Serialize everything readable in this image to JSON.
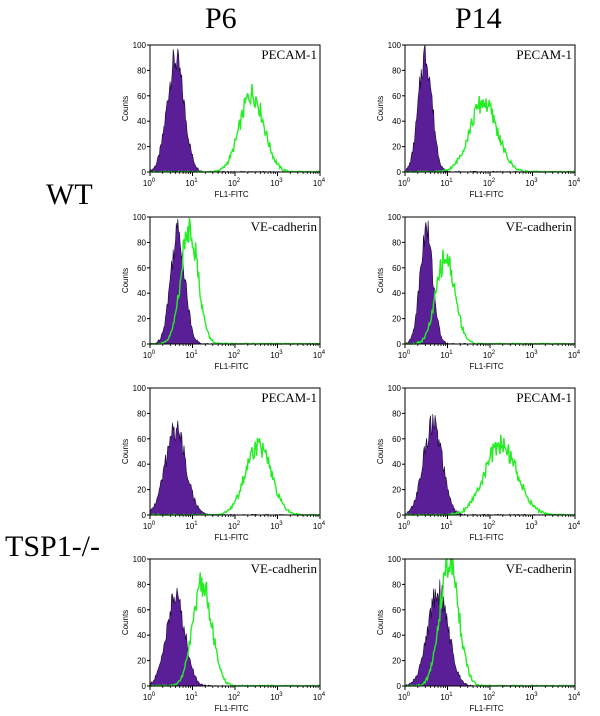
{
  "columns": [
    "P6",
    "P14"
  ],
  "rows": [
    "WT",
    "TSP1-/-"
  ],
  "colors": {
    "isotype_fill": "#5a1f96",
    "marker_line": "#22ee22",
    "axis": "#000000"
  },
  "chart_data": [
    {
      "type": "area",
      "column": "P6",
      "genotype": "WT",
      "marker": "PECAM-1",
      "xlabel": "FL1-FITC",
      "ylabel": "Counts",
      "xscale": "log",
      "xlim": [
        1,
        10000
      ],
      "ylim": [
        0,
        100
      ],
      "xticks": [
        "10",
        "10",
        "10",
        "10",
        "10"
      ],
      "xtick_exp": [
        "0",
        "1",
        "2",
        "3",
        "4"
      ],
      "yticks": [
        "0",
        "20",
        "40",
        "60",
        "80",
        "100"
      ],
      "series": [
        {
          "kind": "filled",
          "peak_x": 4.0,
          "peak_y": 88,
          "width": 0.2
        },
        {
          "kind": "line",
          "peak_x": 250,
          "peak_y": 62,
          "width": 0.28
        }
      ]
    },
    {
      "type": "area",
      "column": "P14",
      "genotype": "WT",
      "marker": "PECAM-1",
      "xlabel": "FL1-FITC",
      "ylabel": "Counts",
      "xscale": "log",
      "xlim": [
        1,
        10000
      ],
      "ylim": [
        0,
        100
      ],
      "xticks": [
        "10",
        "10",
        "10",
        "10",
        "10"
      ],
      "xtick_exp": [
        "0",
        "1",
        "2",
        "3",
        "4"
      ],
      "yticks": [
        "0",
        "20",
        "40",
        "60",
        "80",
        "100"
      ],
      "series": [
        {
          "kind": "filled",
          "peak_x": 3.0,
          "peak_y": 92,
          "width": 0.16
        },
        {
          "kind": "line",
          "peak_x": 70,
          "peak_y": 55,
          "width": 0.32
        }
      ]
    },
    {
      "type": "area",
      "column": "P6",
      "genotype": "WT",
      "marker": "VE-cadherin",
      "xlabel": "FL1-FITC",
      "ylabel": "Counts",
      "xscale": "log",
      "xlim": [
        1,
        10000
      ],
      "ylim": [
        0,
        100
      ],
      "xticks": [
        "10",
        "10",
        "10",
        "10",
        "10"
      ],
      "xtick_exp": [
        "0",
        "1",
        "2",
        "3",
        "4"
      ],
      "yticks": [
        "0",
        "20",
        "40",
        "60",
        "80",
        "100"
      ],
      "series": [
        {
          "kind": "filled",
          "peak_x": 4.5,
          "peak_y": 88,
          "width": 0.17
        },
        {
          "kind": "line",
          "peak_x": 8.5,
          "peak_y": 92,
          "width": 0.2
        }
      ]
    },
    {
      "type": "area",
      "column": "P14",
      "genotype": "WT",
      "marker": "VE-cadherin",
      "xlabel": "FL1-FITC",
      "ylabel": "Counts",
      "xscale": "log",
      "xlim": [
        1,
        10000
      ],
      "ylim": [
        0,
        100
      ],
      "xticks": [
        "10",
        "10",
        "10",
        "10",
        "10"
      ],
      "xtick_exp": [
        "0",
        "1",
        "2",
        "3",
        "4"
      ],
      "yticks": [
        "0",
        "20",
        "40",
        "60",
        "80",
        "100"
      ],
      "series": [
        {
          "kind": "filled",
          "peak_x": 3.2,
          "peak_y": 90,
          "width": 0.15
        },
        {
          "kind": "line",
          "peak_x": 9.0,
          "peak_y": 68,
          "width": 0.22
        }
      ]
    },
    {
      "type": "area",
      "column": "P6",
      "genotype": "TSP1-/-",
      "marker": "PECAM-1",
      "xlabel": "FL1-FITC",
      "ylabel": "Counts",
      "xscale": "log",
      "xlim": [
        1,
        10000
      ],
      "ylim": [
        0,
        100
      ],
      "xticks": [
        "10",
        "10",
        "10",
        "10",
        "10"
      ],
      "xtick_exp": [
        "0",
        "1",
        "2",
        "3",
        "4"
      ],
      "yticks": [
        "0",
        "20",
        "40",
        "60",
        "80",
        "100"
      ],
      "series": [
        {
          "kind": "filled",
          "peak_x": 4.0,
          "peak_y": 68,
          "width": 0.24
        },
        {
          "kind": "line",
          "peak_x": 350,
          "peak_y": 55,
          "width": 0.3
        }
      ]
    },
    {
      "type": "area",
      "column": "P14",
      "genotype": "TSP1-/-",
      "marker": "PECAM-1",
      "xlabel": "FL1-FITC",
      "ylabel": "Counts",
      "xscale": "log",
      "xlim": [
        1,
        10000
      ],
      "ylim": [
        0,
        100
      ],
      "xticks": [
        "10",
        "10",
        "10",
        "10",
        "10"
      ],
      "xtick_exp": [
        "0",
        "1",
        "2",
        "3",
        "4"
      ],
      "yticks": [
        "0",
        "20",
        "40",
        "60",
        "80",
        "100"
      ],
      "series": [
        {
          "kind": "filled",
          "peak_x": 4.5,
          "peak_y": 72,
          "width": 0.22
        },
        {
          "kind": "line",
          "peak_x": 180,
          "peak_y": 55,
          "width": 0.38
        }
      ]
    },
    {
      "type": "area",
      "column": "P6",
      "genotype": "TSP1-/-",
      "marker": "VE-cadherin",
      "xlabel": "FL1-FITC",
      "ylabel": "Counts",
      "xscale": "log",
      "xlim": [
        1,
        10000
      ],
      "ylim": [
        0,
        100
      ],
      "xticks": [
        "10",
        "10",
        "10",
        "10",
        "10"
      ],
      "xtick_exp": [
        "0",
        "1",
        "2",
        "3",
        "4"
      ],
      "yticks": [
        "0",
        "20",
        "40",
        "60",
        "80",
        "100"
      ],
      "series": [
        {
          "kind": "filled",
          "peak_x": 4.0,
          "peak_y": 70,
          "width": 0.22
        },
        {
          "kind": "line",
          "peak_x": 17,
          "peak_y": 82,
          "width": 0.22
        }
      ]
    },
    {
      "type": "area",
      "column": "P14",
      "genotype": "TSP1-/-",
      "marker": "VE-cadherin",
      "xlabel": "FL1-FITC",
      "ylabel": "Counts",
      "xscale": "log",
      "xlim": [
        1,
        10000
      ],
      "ylim": [
        0,
        100
      ],
      "xticks": [
        "10",
        "10",
        "10",
        "10",
        "10"
      ],
      "xtick_exp": [
        "0",
        "1",
        "2",
        "3",
        "4"
      ],
      "yticks": [
        "0",
        "20",
        "40",
        "60",
        "80",
        "100"
      ],
      "series": [
        {
          "kind": "filled",
          "peak_x": 6.0,
          "peak_y": 75,
          "width": 0.24
        },
        {
          "kind": "line",
          "peak_x": 11,
          "peak_y": 98,
          "width": 0.22
        }
      ]
    }
  ]
}
